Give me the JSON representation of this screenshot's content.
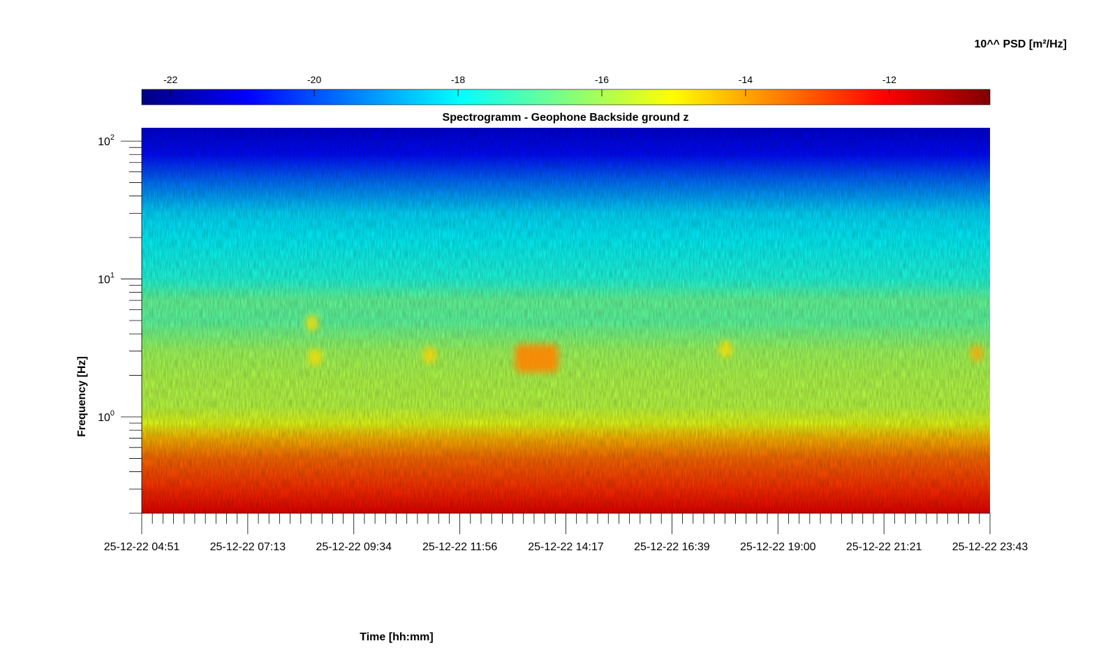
{
  "chart_data": {
    "type": "heatmap",
    "title": "Spectrogramm - Geophone Backside ground z",
    "xlabel": "Time [hh:mm]",
    "ylabel": "Frequency [Hz]",
    "colorbar_label": "10^^ PSD [m²/Hz]",
    "colormap": "jet",
    "colorbar_range": [
      -22.4,
      -10.6
    ],
    "colorbar_ticks": [
      "-22",
      "-20",
      "-18",
      "-16",
      "-14",
      "-12"
    ],
    "colorbar_tick_values": [
      -22,
      -20,
      -18,
      -16,
      -14,
      -12
    ],
    "yscale": "log",
    "ylim": [
      0.2,
      125
    ],
    "y_ticks": [
      {
        "base": "10",
        "exp": "0",
        "value": 1
      },
      {
        "base": "10",
        "exp": "1",
        "value": 10
      },
      {
        "base": "10",
        "exp": "2",
        "value": 100
      }
    ],
    "x_ticks": [
      "25-12-22 04:51",
      "25-12-22 07:13",
      "25-12-22 09:34",
      "25-12-22 11:56",
      "25-12-22 14:17",
      "25-12-22 16:39",
      "25-12-22 19:00",
      "25-12-22 21:21",
      "25-12-22 23:43"
    ],
    "psd_profile": [
      {
        "freq_hz": 0.2,
        "log10_psd": -11.8
      },
      {
        "freq_hz": 0.3,
        "log10_psd": -12.6
      },
      {
        "freq_hz": 0.5,
        "log10_psd": -13.3
      },
      {
        "freq_hz": 0.7,
        "log10_psd": -14.2
      },
      {
        "freq_hz": 0.9,
        "log10_psd": -15.3
      },
      {
        "freq_hz": 1.2,
        "log10_psd": -15.8
      },
      {
        "freq_hz": 2.0,
        "log10_psd": -15.9
      },
      {
        "freq_hz": 3.0,
        "log10_psd": -16.1
      },
      {
        "freq_hz": 5.0,
        "log10_psd": -16.9
      },
      {
        "freq_hz": 7.0,
        "log10_psd": -16.8
      },
      {
        "freq_hz": 10,
        "log10_psd": -17.6
      },
      {
        "freq_hz": 20,
        "log10_psd": -18.1
      },
      {
        "freq_hz": 30,
        "log10_psd": -18.4
      },
      {
        "freq_hz": 50,
        "log10_psd": -19.6
      },
      {
        "freq_hz": 80,
        "log10_psd": -20.8
      },
      {
        "freq_hz": 125,
        "log10_psd": -21.4
      }
    ],
    "events": [
      {
        "time": "25-12-22 13:35",
        "freq_hz": 2.6,
        "log10_psd": -13.6
      },
      {
        "time": "25-12-22 08:38",
        "freq_hz": 4.8,
        "log10_psd": -14.6
      },
      {
        "time": "25-12-22 08:42",
        "freq_hz": 2.7,
        "log10_psd": -14.6
      },
      {
        "time": "25-12-22 11:15",
        "freq_hz": 2.8,
        "log10_psd": -14.5
      },
      {
        "time": "25-12-22 17:50",
        "freq_hz": 3.1,
        "log10_psd": -14.6
      },
      {
        "time": "25-12-22 23:25",
        "freq_hz": 2.9,
        "log10_psd": -14.0
      }
    ]
  }
}
